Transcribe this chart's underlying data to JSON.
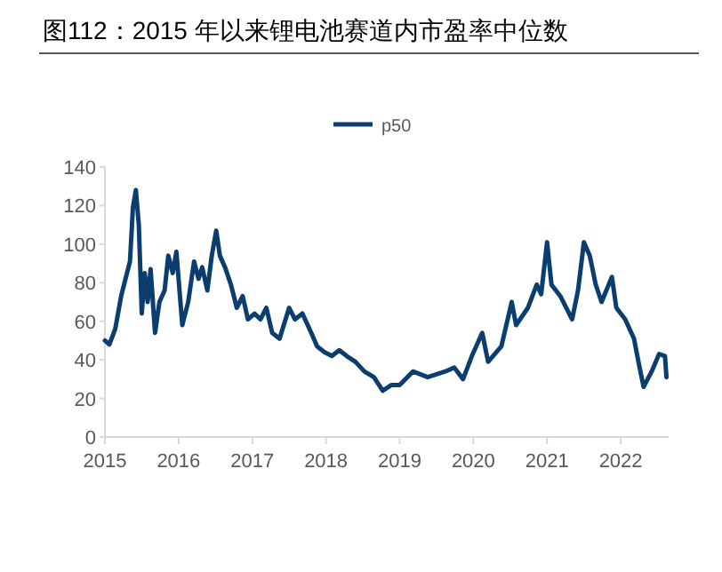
{
  "chart_data": {
    "type": "line",
    "title": "图112：2015 年以来锂电池赛道内市盈率中位数",
    "x": [
      2015.0,
      2015.06,
      2015.14,
      2015.22,
      2015.3,
      2015.34,
      2015.38,
      2015.42,
      2015.46,
      2015.5,
      2015.54,
      2015.58,
      2015.62,
      2015.68,
      2015.74,
      2015.81,
      2015.86,
      2015.92,
      2015.97,
      2016.05,
      2016.13,
      2016.21,
      2016.27,
      2016.32,
      2016.39,
      2016.45,
      2016.51,
      2016.56,
      2016.63,
      2016.71,
      2016.79,
      2016.87,
      2016.94,
      2017.03,
      2017.11,
      2017.19,
      2017.27,
      2017.37,
      2017.5,
      2017.58,
      2017.68,
      2017.8,
      2017.88,
      2017.98,
      2018.08,
      2018.18,
      2018.28,
      2018.4,
      2018.52,
      2018.65,
      2018.77,
      2018.89,
      2019.0,
      2019.18,
      2019.38,
      2019.62,
      2019.74,
      2019.86,
      2019.98,
      2020.12,
      2020.2,
      2020.38,
      2020.52,
      2020.58,
      2020.74,
      2020.86,
      2020.92,
      2021.0,
      2021.06,
      2021.18,
      2021.34,
      2021.42,
      2021.5,
      2021.58,
      2021.66,
      2021.74,
      2021.88,
      2021.94,
      2022.06,
      2022.18,
      2022.24,
      2022.31,
      2022.42,
      2022.52,
      2022.6,
      2022.62
    ],
    "series": [
      {
        "name": "p50",
        "color": "#0b3e6f",
        "values": [
          50,
          48,
          56,
          73,
          85,
          91,
          119,
          128,
          110,
          64,
          85,
          70,
          87,
          54,
          70,
          76,
          94,
          85,
          96,
          58,
          70,
          91,
          82,
          88,
          76,
          94,
          107,
          94,
          88,
          79,
          67,
          73,
          61,
          64,
          61,
          67,
          54,
          51,
          67,
          61,
          64,
          54,
          47,
          44,
          42,
          45,
          42,
          39,
          34,
          31,
          24,
          27,
          27,
          34,
          31,
          34,
          36,
          30,
          42,
          54,
          39,
          47,
          70,
          58,
          67,
          79,
          74,
          101,
          79,
          73,
          61,
          76,
          101,
          94,
          79,
          70,
          83,
          67,
          61,
          51,
          39,
          26,
          34,
          43,
          42,
          31
        ]
      }
    ],
    "xlim": [
      2015,
      2022.65
    ],
    "xticks": [
      2015,
      2016,
      2017,
      2018,
      2019,
      2020,
      2021,
      2022
    ],
    "ylim": [
      0,
      140
    ],
    "yticks": [
      0,
      20,
      40,
      60,
      80,
      100,
      120,
      140
    ],
    "legend": "top",
    "grid": false
  }
}
